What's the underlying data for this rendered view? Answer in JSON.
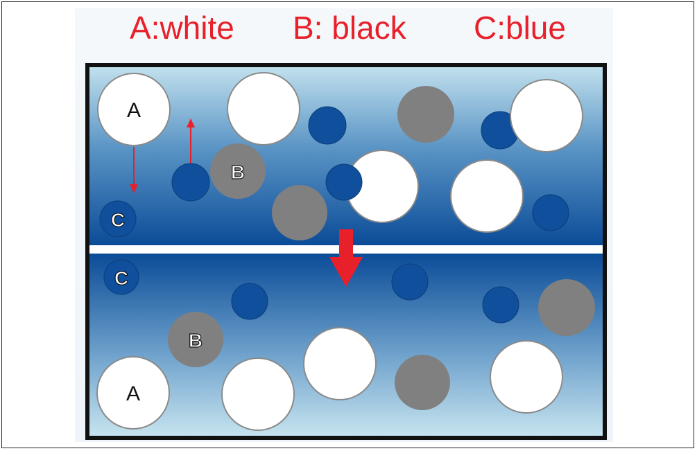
{
  "legend": {
    "a": "A:white",
    "b": "B: black",
    "c": "C:blue"
  },
  "labels": {
    "a": "A",
    "b": "B",
    "c": "C"
  },
  "colors": {
    "legend_text": "#e8202a",
    "particle_a": "#ffffff",
    "particle_b": "#808080",
    "particle_c": "#0f4f9c",
    "arrow": "#e8202a",
    "divider": "#ffffff",
    "frame": "#111111"
  }
}
